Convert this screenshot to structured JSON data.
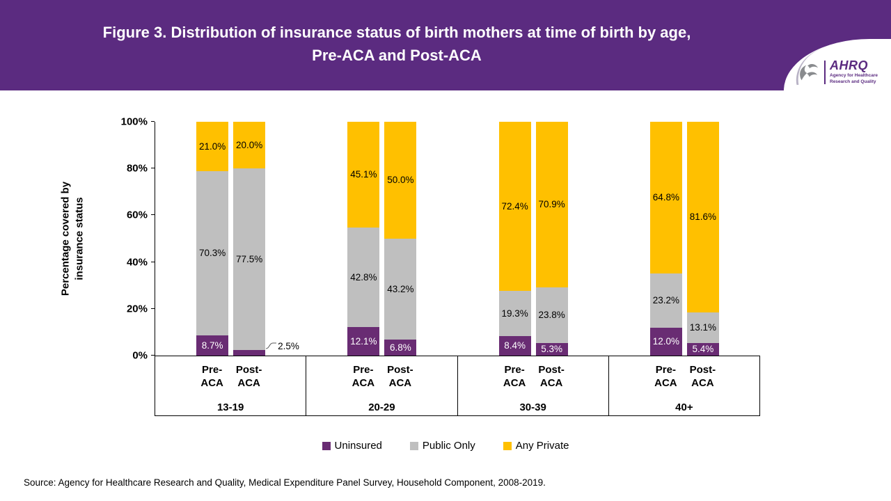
{
  "theme": {
    "header_purple": "#5b2b80"
  },
  "header": {
    "title_line1": "Figure 3. Distribution of insurance status of birth mothers at time of birth by age,",
    "title_line2": "Pre-ACA and Post-ACA",
    "logo": {
      "abbr": "AHRQ",
      "tagline": "Agency for Healthcare Research and Quality"
    }
  },
  "chart_data": {
    "type": "bar",
    "stacked": true,
    "title": "Figure 3. Distribution of insurance status of birth mothers at time of birth by age, Pre-ACA and Post-ACA",
    "ylabel_line1": "Percentage covered by",
    "ylabel_line2": "insurance status",
    "ylim": [
      0,
      100
    ],
    "yticks": [
      "0%",
      "20%",
      "40%",
      "60%",
      "80%",
      "100%"
    ],
    "legend_position": "bottom",
    "series": [
      {
        "name": "Uninsured",
        "key": "uninsured",
        "color": "#692c73",
        "label_color": "#ffffff"
      },
      {
        "name": "Public Only",
        "key": "public_only",
        "color": "#bfbfbf",
        "label_color": "#000000"
      },
      {
        "name": "Any Private",
        "key": "any_private",
        "color": "#ffc000",
        "label_color": "#000000"
      }
    ],
    "groups": [
      {
        "label": "13-19",
        "bars": [
          {
            "label_line1": "Pre-",
            "label_line2": "ACA",
            "values": {
              "uninsured": 8.7,
              "public_only": 70.3,
              "any_private": 21.0
            }
          },
          {
            "label_line1": "Post-",
            "label_line2": "ACA",
            "values": {
              "uninsured": 2.5,
              "public_only": 77.5,
              "any_private": 20.0
            }
          }
        ]
      },
      {
        "label": "20-29",
        "bars": [
          {
            "label_line1": "Pre-",
            "label_line2": "ACA",
            "values": {
              "uninsured": 12.1,
              "public_only": 42.8,
              "any_private": 45.1
            }
          },
          {
            "label_line1": "Post-",
            "label_line2": "ACA",
            "values": {
              "uninsured": 6.8,
              "public_only": 43.2,
              "any_private": 50.0
            }
          }
        ]
      },
      {
        "label": "30-39",
        "bars": [
          {
            "label_line1": "Pre-",
            "label_line2": "ACA",
            "values": {
              "uninsured": 8.4,
              "public_only": 19.3,
              "any_private": 72.4
            }
          },
          {
            "label_line1": "Post-",
            "label_line2": "ACA",
            "values": {
              "uninsured": 5.3,
              "public_only": 23.8,
              "any_private": 70.9
            }
          }
        ]
      },
      {
        "label": "40+",
        "bars": [
          {
            "label_line1": "Pre-",
            "label_line2": "ACA",
            "values": {
              "uninsured": 12.0,
              "public_only": 23.2,
              "any_private": 64.8
            }
          },
          {
            "label_line1": "Post-",
            "label_line2": "ACA",
            "values": {
              "uninsured": 5.4,
              "public_only": 13.1,
              "any_private": 81.6
            }
          }
        ]
      }
    ]
  },
  "footer": {
    "source": "Source: Agency for Healthcare Research and Quality, Medical Expenditure Panel Survey, Household Component, 2008-2019."
  }
}
